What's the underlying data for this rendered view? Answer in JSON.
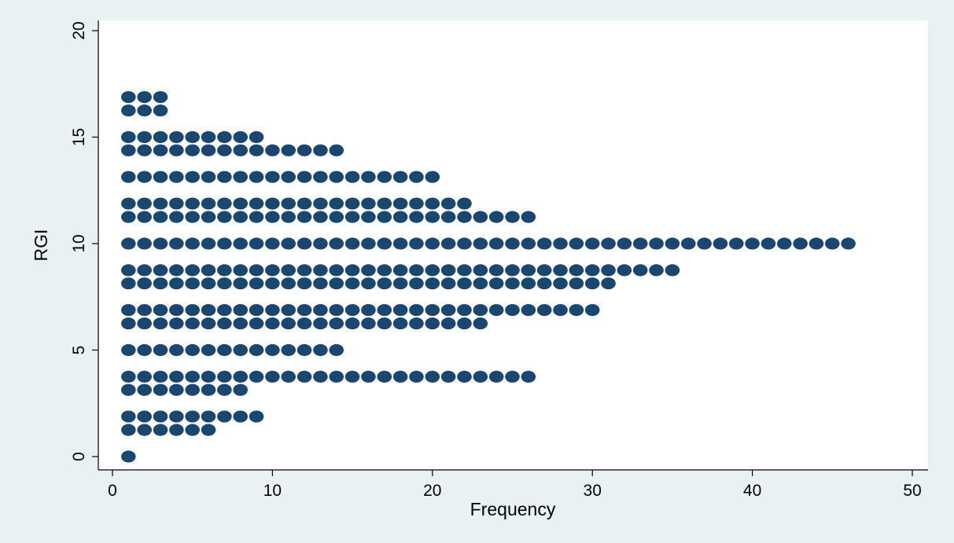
{
  "chart_data": {
    "type": "scatter",
    "xlabel": "Frequency",
    "ylabel": "RGI",
    "xlim": [
      0,
      50
    ],
    "ylim": [
      0,
      20
    ],
    "xticks": [
      0,
      10,
      20,
      30,
      40,
      50
    ],
    "yticks": [
      0,
      5,
      10,
      15,
      20
    ],
    "grid": false,
    "marker_color": "#1a476f",
    "plot_background": "#ffffff",
    "outer_background": "#eaf1f3",
    "series": [
      {
        "rows": [
          {
            "y": 0.0,
            "count": 1
          },
          {
            "y": 1.25,
            "count": 6
          },
          {
            "y": 1.88,
            "count": 9
          },
          {
            "y": 3.13,
            "count": 8
          },
          {
            "y": 3.75,
            "count": 26
          },
          {
            "y": 5.0,
            "count": 14
          },
          {
            "y": 6.25,
            "count": 23
          },
          {
            "y": 6.88,
            "count": 30
          },
          {
            "y": 8.13,
            "count": 31
          },
          {
            "y": 8.75,
            "count": 35
          },
          {
            "y": 10.0,
            "count": 46
          },
          {
            "y": 11.25,
            "count": 26
          },
          {
            "y": 11.88,
            "count": 22
          },
          {
            "y": 13.13,
            "count": 20
          },
          {
            "y": 14.38,
            "count": 14
          },
          {
            "y": 15.0,
            "count": 9
          },
          {
            "y": 16.25,
            "count": 3
          },
          {
            "y": 16.88,
            "count": 3
          }
        ]
      }
    ]
  }
}
